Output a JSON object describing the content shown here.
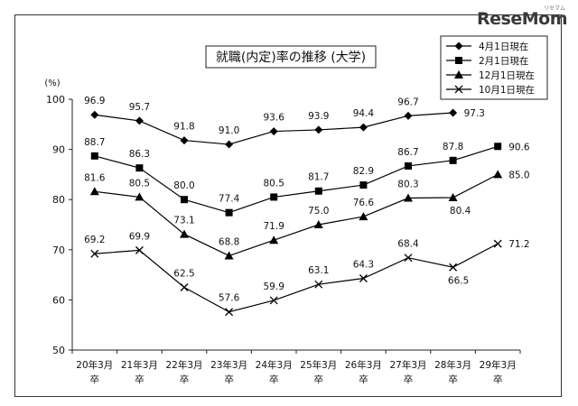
{
  "logo": {
    "text": "ReseMom",
    "sub": "リセマム"
  },
  "chart_data": {
    "type": "line",
    "title": "就職(内定)率の推移 (大学)",
    "ylabel": "(%)",
    "xlabel": "",
    "ylim": [
      50,
      100
    ],
    "yticks": [
      50,
      60,
      70,
      80,
      90,
      100
    ],
    "categories": [
      [
        "20年3月",
        "卒"
      ],
      [
        "21年3月",
        "卒"
      ],
      [
        "22年3月",
        "卒"
      ],
      [
        "23年3月",
        "卒"
      ],
      [
        "24年3月",
        "卒"
      ],
      [
        "25年3月",
        "卒"
      ],
      [
        "26年3月",
        "卒"
      ],
      [
        "27年3月",
        "卒"
      ],
      [
        "28年3月",
        "卒"
      ],
      [
        "29年3月",
        "卒"
      ]
    ],
    "grid": false,
    "legend_position": "top-right",
    "series": [
      {
        "name": "4月1日現在",
        "marker": "diamond",
        "values": [
          96.9,
          95.7,
          91.8,
          91.0,
          93.6,
          93.9,
          94.4,
          96.7,
          97.3,
          null
        ],
        "labels": [
          "96.9",
          "95.7",
          "91.8",
          "91.0",
          "93.6",
          "93.9",
          "94.4",
          "96.7",
          "97.3",
          ""
        ]
      },
      {
        "name": "2月1日現在",
        "marker": "square",
        "values": [
          88.7,
          86.3,
          80.0,
          77.4,
          80.5,
          81.7,
          82.9,
          86.7,
          87.8,
          90.6
        ],
        "labels": [
          "88.7",
          "86.3",
          "80.0",
          "77.4",
          "80.5",
          "81.7",
          "82.9",
          "86.7",
          "87.8",
          "90.6"
        ]
      },
      {
        "name": "12月1日現在",
        "marker": "triangle",
        "values": [
          81.6,
          80.5,
          73.1,
          68.8,
          71.9,
          75.0,
          76.6,
          80.3,
          80.4,
          85.0
        ],
        "labels": [
          "81.6",
          "80.5",
          "73.1",
          "68.8",
          "71.9",
          "75.0",
          "76.6",
          "80.3",
          "80.4",
          "85.0"
        ]
      },
      {
        "name": "10月1日現在",
        "marker": "cross",
        "values": [
          69.2,
          69.9,
          62.5,
          57.6,
          59.9,
          63.1,
          64.3,
          68.4,
          66.5,
          71.2
        ],
        "labels": [
          "69.2",
          "69.9",
          "62.5",
          "57.6",
          "59.9",
          "63.1",
          "64.3",
          "68.4",
          "66.5",
          "71.2"
        ]
      }
    ]
  }
}
